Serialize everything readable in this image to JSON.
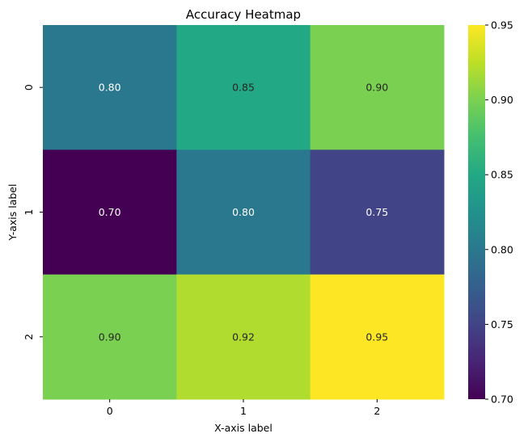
{
  "chart_data": {
    "type": "heatmap",
    "title": "Accuracy Heatmap",
    "xlabel": "X-axis label",
    "ylabel": "Y-axis label",
    "x_categories": [
      "0",
      "1",
      "2"
    ],
    "y_categories": [
      "0",
      "1",
      "2"
    ],
    "values": [
      [
        0.8,
        0.85,
        0.9
      ],
      [
        0.7,
        0.8,
        0.75
      ],
      [
        0.9,
        0.92,
        0.95
      ]
    ],
    "cell_labels": [
      [
        "0.80",
        "0.85",
        "0.90"
      ],
      [
        "0.70",
        "0.80",
        "0.75"
      ],
      [
        "0.90",
        "0.92",
        "0.95"
      ]
    ],
    "colormap": "viridis",
    "colorbar": {
      "range": [
        0.7,
        0.95
      ],
      "ticks": [
        0.7,
        0.75,
        0.8,
        0.85,
        0.9,
        0.95
      ],
      "tick_labels": [
        "0.70",
        "0.75",
        "0.80",
        "0.85",
        "0.90",
        "0.95"
      ]
    },
    "grid": false
  }
}
